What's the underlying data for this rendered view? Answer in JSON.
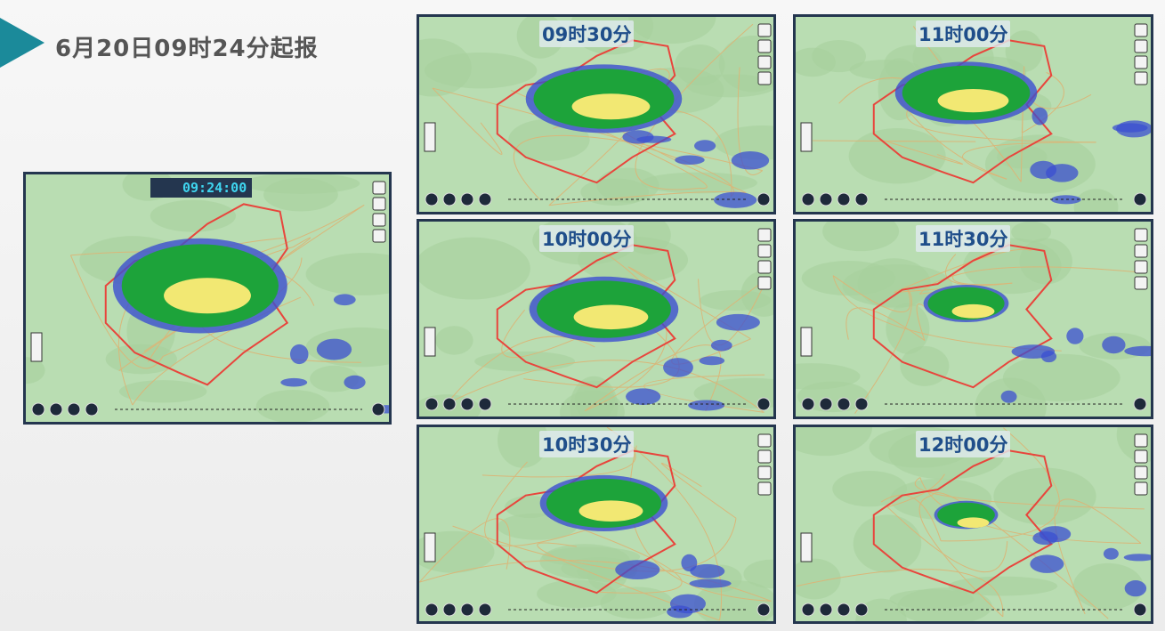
{
  "header": {
    "title": "6月20日09时24分起报"
  },
  "main_panel": {
    "time": "09:24:00"
  },
  "panels": [
    {
      "label": "09时30分"
    },
    {
      "label": "11时00分"
    },
    {
      "label": "10时00分"
    },
    {
      "label": "11时30分"
    },
    {
      "label": "10时30分"
    },
    {
      "label": "12时00分"
    }
  ]
}
